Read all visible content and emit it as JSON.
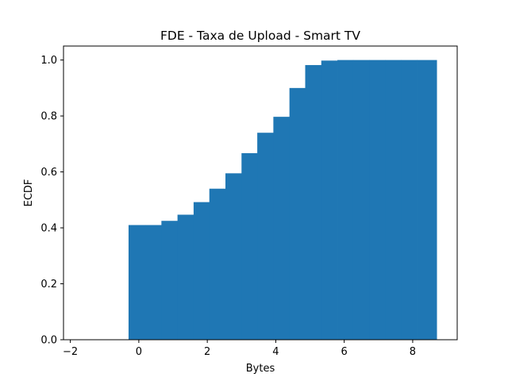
{
  "chart_data": {
    "type": "bar",
    "title": "FDE - Taxa de Upload - Smart TV",
    "xlabel": "Bytes",
    "ylabel": "ECDF",
    "xlim": [
      -2.2,
      9.3
    ],
    "ylim": [
      0.0,
      1.05
    ],
    "xticks": [
      -2,
      0,
      2,
      4,
      6,
      8
    ],
    "yticks": [
      0.0,
      0.2,
      0.4,
      0.6,
      0.8,
      1.0
    ],
    "grid": false,
    "bar_color": "#1f77b4",
    "bin_edges": [
      -0.3,
      0.2,
      0.66,
      1.13,
      1.6,
      2.06,
      2.53,
      3.0,
      3.46,
      3.93,
      4.4,
      4.86,
      5.33,
      5.8,
      6.26,
      6.73,
      7.2,
      7.66,
      8.13,
      8.7
    ],
    "values": [
      0.41,
      0.41,
      0.425,
      0.447,
      0.492,
      0.54,
      0.595,
      0.667,
      0.74,
      0.797,
      0.9,
      0.982,
      0.998,
      1.0,
      1.0,
      1.0,
      1.0,
      1.0,
      1.0
    ]
  }
}
